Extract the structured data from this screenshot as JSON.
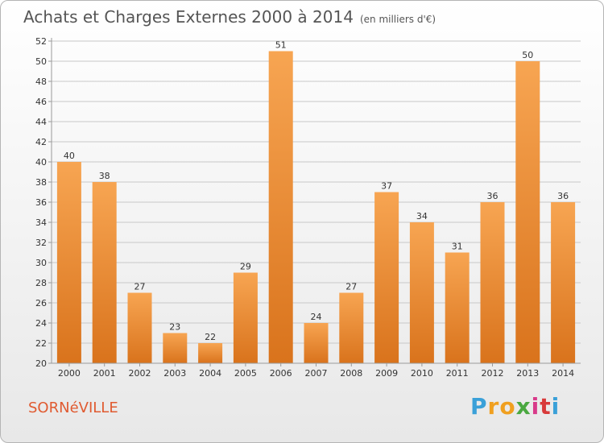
{
  "title": "Achats et Charges Externes 2000 à 2014",
  "subtitle": "(en milliers d'€)",
  "commune": "SORNéVILLE",
  "logo": {
    "letters": [
      "P",
      "r",
      "o",
      "x",
      "i",
      "t",
      "i"
    ],
    "colors": [
      "#3aa0d8",
      "#f0a020",
      "#f0a020",
      "#4aa840",
      "#d83a8a",
      "#d83a3a",
      "#3aa0d8"
    ]
  },
  "colors": {
    "bar_top": "#f7a552",
    "bar_bottom": "#d9731c",
    "grid": "#c8c8c8",
    "axis": "#9a9a9a",
    "title": "#555555",
    "commune": "#e05a30"
  },
  "chart_data": {
    "type": "bar",
    "title": "Achats et Charges Externes 2000 à 2014",
    "subtitle": "(en milliers d'€)",
    "categories": [
      "2000",
      "2001",
      "2002",
      "2003",
      "2004",
      "2005",
      "2006",
      "2007",
      "2008",
      "2009",
      "2010",
      "2011",
      "2012",
      "2013",
      "2014"
    ],
    "values": [
      40,
      38,
      27,
      23,
      22,
      29,
      51,
      24,
      27,
      37,
      34,
      31,
      36,
      50,
      36
    ],
    "ylim": [
      20,
      52
    ],
    "yticks": [
      20,
      22,
      24,
      26,
      28,
      30,
      32,
      34,
      36,
      38,
      40,
      42,
      44,
      46,
      48,
      50,
      52
    ],
    "grid": true,
    "xlabel": "",
    "ylabel": ""
  }
}
